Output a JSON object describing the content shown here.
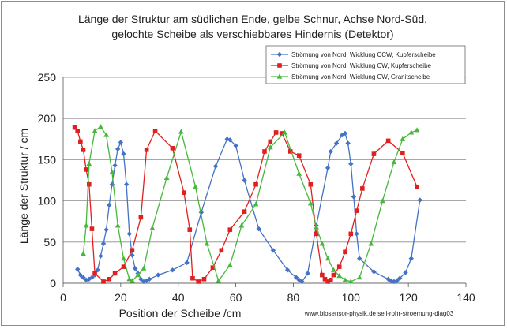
{
  "chart_data": {
    "type": "line",
    "title": "Länge der Struktur am südlichen Ende, gelbe Schnur, Achse Nord-Süd,",
    "subtitle": "gelochte Scheibe als verschiebbares Hindernis (Detektor)",
    "xlabel": "Position der Scheibe /cm",
    "ylabel": "Länge der Struktur  / cm",
    "xlim": [
      0,
      140
    ],
    "ylim": [
      0,
      250
    ],
    "xticks": [
      "0",
      "20",
      "40",
      "60",
      "80",
      "100",
      "120",
      "140"
    ],
    "yticks": [
      "0",
      "50",
      "100",
      "150",
      "200",
      "250"
    ],
    "grid": true,
    "legend_position": "top-right",
    "footnote": "www.biosensor-physik.de seil-rohr-stroemung-diag03",
    "series": [
      {
        "name": "Strömung von Nord, Wicklung CCW, Kupferscheibe",
        "color": "#4472C4",
        "marker": "diamond",
        "x": [
          5,
          6,
          7,
          8,
          9,
          10,
          11,
          12,
          13,
          14,
          15,
          16,
          17,
          18,
          19,
          20,
          21,
          22,
          23,
          24,
          25,
          26,
          27,
          28,
          29,
          30,
          33,
          38,
          43,
          48,
          53,
          57,
          58,
          60,
          63,
          68,
          73,
          78,
          81,
          82,
          83,
          85,
          88,
          92,
          93,
          95,
          97,
          98,
          99,
          100,
          101,
          102,
          103,
          108,
          113,
          114,
          115,
          116,
          117,
          119,
          121,
          124
        ],
        "y": [
          17,
          10,
          7,
          4,
          5,
          7,
          10,
          16,
          33,
          48,
          65,
          95,
          120,
          143,
          163,
          171,
          157,
          120,
          60,
          34,
          18,
          12,
          5,
          2,
          3,
          5,
          10,
          16,
          25,
          86,
          142,
          175,
          174,
          167,
          125,
          66,
          40,
          16,
          7,
          4,
          2,
          12,
          70,
          140,
          160,
          170,
          180,
          182,
          170,
          145,
          105,
          60,
          30,
          14,
          5,
          3,
          2,
          3,
          6,
          13,
          30,
          101
        ]
      },
      {
        "name": "Strömung von Nord, Wicklung CW, Kupferscheibe",
        "color": "#E02020",
        "marker": "square",
        "x": [
          4,
          5,
          6,
          7,
          8,
          9,
          10,
          11,
          14,
          16,
          18,
          21,
          24,
          27,
          29,
          32,
          38,
          42,
          44,
          45,
          47,
          49,
          52,
          55,
          58,
          63,
          67,
          70,
          72,
          74,
          76,
          79,
          82,
          86,
          88,
          90,
          91,
          92,
          93,
          94,
          96,
          98,
          100,
          102,
          104,
          108,
          113,
          118,
          123
        ],
        "y": [
          189,
          185,
          172,
          162,
          138,
          120,
          66,
          12,
          2,
          5,
          12,
          20,
          40,
          80,
          162,
          185,
          164,
          110,
          65,
          6,
          2,
          5,
          19,
          40,
          65,
          87,
          120,
          160,
          172,
          183,
          182,
          160,
          155,
          120,
          60,
          10,
          5,
          2,
          4,
          10,
          20,
          38,
          60,
          88,
          115,
          157,
          173,
          158,
          117
        ]
      },
      {
        "name": "Strömung von Nord, Wicklung CW, Granitscheibe",
        "color": "#46B83C",
        "marker": "triangle",
        "x": [
          7,
          8,
          9,
          11,
          13,
          15,
          17,
          19,
          21,
          23,
          24,
          26,
          28,
          31,
          36,
          41,
          46,
          50,
          54,
          58,
          62,
          67,
          72,
          77,
          82,
          86,
          88,
          90,
          92,
          94,
          96,
          98,
          100,
          103,
          107,
          111,
          115,
          118,
          121,
          123
        ],
        "y": [
          36,
          70,
          145,
          185,
          190,
          180,
          135,
          70,
          30,
          5,
          3,
          10,
          18,
          67,
          128,
          184,
          117,
          48,
          3,
          22,
          70,
          96,
          165,
          183,
          133,
          97,
          68,
          48,
          30,
          16,
          9,
          4,
          2,
          7,
          48,
          100,
          147,
          175,
          183,
          186
        ]
      }
    ]
  }
}
